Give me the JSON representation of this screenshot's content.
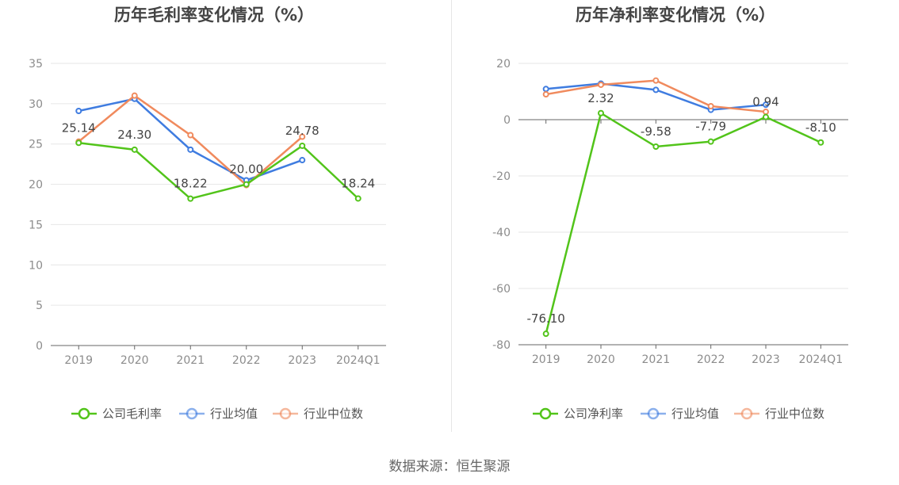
{
  "source_text": "数据来源：恒生聚源",
  "colors": {
    "company": "#52c41a",
    "industry_avg": "#3f7ce0",
    "industry_median": "#f08a5d",
    "grid": "#e6e6e6",
    "axis": "#666666"
  },
  "chart_data": [
    {
      "type": "line",
      "title": "历年毛利率变化情况（%）",
      "categories": [
        "2019",
        "2020",
        "2021",
        "2022",
        "2023",
        "2024Q1"
      ],
      "ylim": [
        0,
        35
      ],
      "yticks": [
        0,
        5,
        10,
        15,
        20,
        25,
        30,
        35
      ],
      "grid": true,
      "legend_position": "bottom",
      "series": [
        {
          "name": "公司毛利率",
          "color_key": "company",
          "values": [
            25.14,
            24.3,
            18.22,
            20.0,
            24.78,
            18.24
          ],
          "labels": [
            "25.14",
            "24.30",
            "18.22",
            "20.00",
            "24.78",
            "18.24"
          ]
        },
        {
          "name": "行业均值",
          "color_key": "industry_avg",
          "values": [
            29.1,
            30.6,
            24.3,
            20.5,
            23.0,
            null
          ]
        },
        {
          "name": "行业中位数",
          "color_key": "industry_median",
          "values": [
            25.3,
            31.0,
            26.1,
            19.9,
            25.9,
            null
          ]
        }
      ]
    },
    {
      "type": "line",
      "title": "历年净利率变化情况（%）",
      "categories": [
        "2019",
        "2020",
        "2021",
        "2022",
        "2023",
        "2024Q1"
      ],
      "ylim": [
        -80,
        20
      ],
      "yticks": [
        -80,
        -60,
        -40,
        -20,
        0,
        20
      ],
      "grid": true,
      "legend_position": "bottom",
      "series": [
        {
          "name": "公司净利率",
          "color_key": "company",
          "values": [
            -76.1,
            2.32,
            -9.58,
            -7.79,
            0.94,
            -8.1
          ],
          "labels": [
            "-76.10",
            "2.32",
            "-9.58",
            "-7.79",
            "0.94",
            "-8.10"
          ]
        },
        {
          "name": "行业均值",
          "color_key": "industry_avg",
          "values": [
            10.9,
            12.8,
            10.6,
            3.5,
            5.3,
            null
          ]
        },
        {
          "name": "行业中位数",
          "color_key": "industry_median",
          "values": [
            9.0,
            12.4,
            13.9,
            4.8,
            2.8,
            null
          ]
        }
      ]
    }
  ]
}
